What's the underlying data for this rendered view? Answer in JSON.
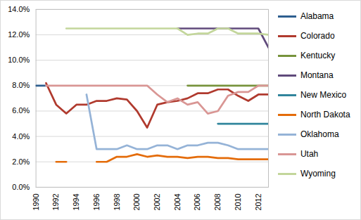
{
  "chart_data": {
    "type": "line",
    "x": [
      1990,
      1991,
      1992,
      1993,
      1994,
      1995,
      1996,
      1997,
      1998,
      1999,
      2000,
      2001,
      2002,
      2003,
      2004,
      2005,
      2006,
      2007,
      2008,
      2009,
      2010,
      2011,
      2012,
      2013
    ],
    "series": [
      {
        "name": "Alabama",
        "color": "#2e5f8f",
        "values": [
          8.0,
          8.0,
          null,
          null,
          null,
          null,
          null,
          null,
          null,
          null,
          null,
          null,
          null,
          null,
          null,
          null,
          null,
          null,
          null,
          null,
          null,
          null,
          null,
          null
        ]
      },
      {
        "name": "Colorado",
        "color": "#b03a2e",
        "values": [
          null,
          8.2,
          6.5,
          5.8,
          6.5,
          6.5,
          6.8,
          6.8,
          7.0,
          6.9,
          6.0,
          4.7,
          6.5,
          6.7,
          6.8,
          7.0,
          7.4,
          7.4,
          7.7,
          7.7,
          7.2,
          6.8,
          7.3,
          7.3
        ]
      },
      {
        "name": "Kentucky",
        "color": "#77933c",
        "values": [
          null,
          null,
          null,
          null,
          null,
          null,
          null,
          null,
          null,
          null,
          null,
          null,
          null,
          null,
          null,
          8.0,
          8.0,
          8.0,
          8.0,
          8.0,
          8.0,
          8.0,
          8.0,
          8.0
        ]
      },
      {
        "name": "Montana",
        "color": "#604a7b",
        "values": [
          null,
          null,
          null,
          null,
          null,
          null,
          null,
          null,
          null,
          null,
          null,
          null,
          null,
          null,
          12.5,
          12.5,
          12.5,
          12.5,
          12.5,
          12.5,
          12.5,
          12.5,
          12.5,
          11.0
        ]
      },
      {
        "name": "New Mexico",
        "color": "#31859c",
        "values": [
          null,
          null,
          null,
          null,
          null,
          null,
          null,
          null,
          null,
          null,
          null,
          null,
          null,
          null,
          null,
          null,
          null,
          null,
          5.0,
          5.0,
          5.0,
          5.0,
          5.0,
          5.0
        ]
      },
      {
        "name": "North Dakota",
        "color": "#e46c0a",
        "values": [
          null,
          null,
          2.0,
          2.0,
          null,
          null,
          2.0,
          2.0,
          2.4,
          2.4,
          2.6,
          2.4,
          2.5,
          2.4,
          2.4,
          2.3,
          2.4,
          2.4,
          2.3,
          2.3,
          2.2,
          2.2,
          2.2,
          2.2
        ]
      },
      {
        "name": "Oklahoma",
        "color": "#95b3d7",
        "values": [
          null,
          null,
          null,
          null,
          null,
          7.3,
          3.0,
          3.0,
          3.0,
          3.3,
          3.0,
          3.0,
          3.3,
          3.3,
          3.0,
          3.3,
          3.3,
          3.5,
          3.5,
          3.3,
          3.0,
          3.0,
          3.0,
          3.0
        ]
      },
      {
        "name": "Utah",
        "color": "#d99694",
        "values": [
          null,
          8.0,
          8.0,
          8.0,
          8.0,
          8.0,
          8.0,
          8.0,
          8.0,
          8.0,
          8.0,
          8.0,
          7.3,
          6.7,
          7.0,
          6.5,
          6.7,
          5.8,
          6.0,
          7.2,
          7.5,
          7.5,
          8.0,
          8.0
        ]
      },
      {
        "name": "Wyoming",
        "color": "#c3d69b",
        "values": [
          null,
          null,
          null,
          12.5,
          12.5,
          12.5,
          12.5,
          12.5,
          12.5,
          12.5,
          12.5,
          12.5,
          12.5,
          12.5,
          12.5,
          12.0,
          12.1,
          12.1,
          12.5,
          12.5,
          12.1,
          12.1,
          12.1,
          12.0
        ]
      }
    ],
    "xlim": [
      1990,
      2013
    ],
    "xticks": [
      1990,
      1992,
      1994,
      1996,
      1998,
      2000,
      2002,
      2004,
      2006,
      2008,
      2010,
      2012
    ],
    "ylim": [
      0,
      14
    ],
    "yticks": [
      {
        "value": 0,
        "label": "0.0%"
      },
      {
        "value": 2,
        "label": "2.0%"
      },
      {
        "value": 4,
        "label": "4.0%"
      },
      {
        "value": 6,
        "label": "6.0%"
      },
      {
        "value": 8,
        "label": "8.0%"
      },
      {
        "value": 10,
        "label": "10.0%"
      },
      {
        "value": 12,
        "label": "12.0%"
      },
      {
        "value": 14,
        "label": "14.0%"
      }
    ],
    "grid": true,
    "legend": "right"
  }
}
